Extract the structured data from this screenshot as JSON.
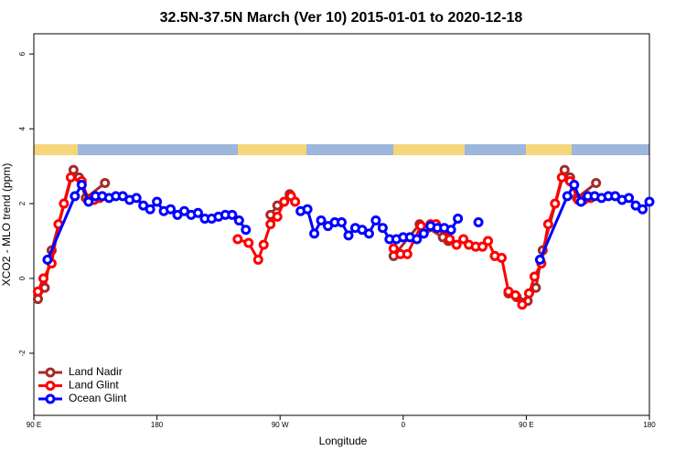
{
  "chart_data": {
    "type": "line",
    "title": "32.5N-37.5N March (Ver 10)   2015-01-01 to 2020-12-18",
    "x_label": "Longitude",
    "y_label": "XCO2 - MLO trend (ppm)",
    "xlim": [
      90,
      540
    ],
    "xticks": [
      {
        "value": 90,
        "label": "90 E"
      },
      {
        "value": 180,
        "label": "180"
      },
      {
        "value": 270,
        "label": "90 W"
      },
      {
        "value": 360,
        "label": "0"
      },
      {
        "value": 450,
        "label": "90 E"
      },
      {
        "value": 540,
        "label": "180"
      }
    ],
    "ylim": [
      -3.66,
      6.54
    ],
    "yticks": [
      -2,
      0,
      2,
      4,
      6
    ],
    "legend": "bottom-left",
    "series": [
      {
        "name": "Land Nadir",
        "color": "#a52a2a",
        "x": [
          93,
          98,
          103,
          119,
          123,
          128,
          142,
          null,
          263,
          268,
          277,
          null,
          353,
          372,
          378,
          389,
          393,
          null,
          437,
          443,
          451,
          457,
          462,
          478,
          482,
          487,
          501
        ],
        "values": [
          -0.55,
          -0.25,
          0.75,
          2.9,
          2.7,
          2.15,
          2.55,
          null,
          1.7,
          1.95,
          2.25,
          null,
          0.6,
          1.45,
          1.35,
          1.1,
          1.0,
          null,
          -0.4,
          -0.5,
          -0.6,
          -0.25,
          0.75,
          2.9,
          2.7,
          2.15,
          2.55
        ]
      },
      {
        "name": "Land Glint",
        "color": "#ff0000",
        "x": [
          93,
          97,
          103,
          108,
          112,
          117,
          125,
          130,
          134,
          138,
          null,
          239,
          247,
          254,
          258,
          263,
          268,
          273,
          278,
          281,
          null,
          353,
          358,
          363,
          373,
          380,
          384,
          390,
          394,
          399,
          404,
          408,
          413,
          418,
          422,
          427,
          432,
          437,
          442,
          447,
          452,
          456,
          461,
          466,
          471,
          476,
          482,
          488,
          492,
          497
        ],
        "values": [
          -0.35,
          0.0,
          0.4,
          1.45,
          2.0,
          2.7,
          2.6,
          2.1,
          2.1,
          2.15,
          null,
          1.05,
          0.95,
          0.5,
          0.9,
          1.45,
          1.65,
          2.05,
          2.2,
          2.05,
          null,
          0.8,
          0.65,
          0.65,
          1.4,
          1.45,
          1.45,
          1.3,
          1.05,
          0.9,
          1.05,
          0.9,
          0.85,
          0.85,
          1.0,
          0.6,
          0.55,
          -0.35,
          -0.45,
          -0.7,
          -0.4,
          0.05,
          0.4,
          1.45,
          2.0,
          2.7,
          2.6,
          2.1,
          2.1,
          2.15
        ]
      },
      {
        "name": "Ocean Glint",
        "color": "#0000ff",
        "x": [
          100,
          120,
          125,
          130,
          135,
          140,
          145,
          150,
          155,
          160,
          165,
          170,
          175,
          180,
          185,
          190,
          195,
          200,
          205,
          210,
          215,
          220,
          225,
          230,
          235,
          240,
          245,
          null,
          285,
          290,
          295,
          300,
          305,
          310,
          315,
          320,
          325,
          330,
          335,
          340,
          345,
          350,
          355,
          360,
          365,
          370,
          375,
          380,
          385,
          390,
          395,
          400,
          null,
          415,
          null,
          460,
          480,
          485,
          490,
          495,
          500,
          505,
          510,
          515,
          520,
          525,
          530,
          535,
          540
        ],
        "values": [
          0.5,
          2.2,
          2.5,
          2.05,
          2.2,
          2.2,
          2.15,
          2.2,
          2.2,
          2.1,
          2.15,
          1.95,
          1.85,
          2.05,
          1.8,
          1.85,
          1.7,
          1.8,
          1.7,
          1.75,
          1.6,
          1.6,
          1.65,
          1.7,
          1.7,
          1.55,
          1.3,
          null,
          1.8,
          1.85,
          1.2,
          1.55,
          1.4,
          1.5,
          1.5,
          1.15,
          1.35,
          1.3,
          1.2,
          1.55,
          1.35,
          1.05,
          1.05,
          1.1,
          1.1,
          1.05,
          1.2,
          1.4,
          1.35,
          1.35,
          1.3,
          1.6,
          null,
          1.5,
          null,
          0.5,
          2.2,
          2.5,
          2.05,
          2.2,
          2.2,
          2.15,
          2.2,
          2.2,
          2.1,
          2.15,
          1.95,
          1.85,
          2.05
        ]
      }
    ]
  }
}
